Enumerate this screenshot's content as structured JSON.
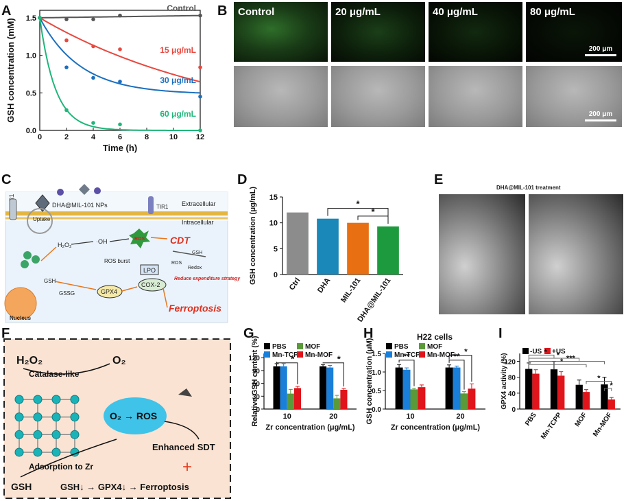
{
  "panels": {
    "A": "A",
    "B": "B",
    "C": "C",
    "D": "D",
    "E": "E",
    "F": "F",
    "G": "G",
    "H": "H",
    "I": "I"
  },
  "micro_B": {
    "top_labels": [
      "Control",
      "20 μg/mL",
      "40 μg/mL",
      "80 μg/mL"
    ],
    "scale_top": "200 μm",
    "scale_bottom": "200 μm"
  },
  "scheme_C": {
    "tir1_left": "TIR1",
    "tir1_right": "TIR1",
    "nps": "DHA@MIL-101 NPs",
    "uptake": "Uptake",
    "extracellular": "Extracellular",
    "intracellular": "Intracellular",
    "h2o2": "H₂O₂",
    "oh": "·OH",
    "ros": "ROS",
    "ros_burst": "ROS burst",
    "cdt": "CDT",
    "gsh_small": "GSH",
    "ros_small": "ROS",
    "redox": "Redox",
    "reduce": "Reduce expenditure strategy",
    "lpo": "LPO",
    "cox2": "COX-2",
    "gsh": "GSH",
    "gssg": "GSSG",
    "gpx4": "GPX4",
    "nucleus": "Nucleus",
    "ferroptosis": "Ferroptosis"
  },
  "panel_E": {
    "title": "DHA@MIL-101 treatment"
  },
  "scheme_F": {
    "h2o2": "H₂O₂",
    "catalase": "Catalase-like",
    "o2": "O₂",
    "o2ros": "O₂ → ROS",
    "enhanced": "Enhanced SDT",
    "adsorption": "Adsorption to Zr",
    "gsh": "GSH",
    "chain": "GSH↓ → GPX4↓ → Ferroptosis",
    "plus": "+"
  },
  "chart_data": [
    {
      "panel": "A",
      "type": "scatter",
      "xlabel": "Time (h)",
      "ylabel": "GSH concentration (mM)",
      "xlim": [
        0,
        12
      ],
      "ylim": [
        0,
        1.6
      ],
      "xticks": [
        0,
        2,
        4,
        6,
        8,
        10,
        12
      ],
      "yticks": [
        0.0,
        0.5,
        1.0,
        1.5
      ],
      "series": [
        {
          "name": "Control",
          "color": "#555555",
          "x": [
            0,
            2,
            4,
            6,
            12
          ],
          "y": [
            1.5,
            1.48,
            1.48,
            1.53,
            1.53
          ],
          "fit": "linear",
          "fit_end": 1.53
        },
        {
          "name": "15 μg/mL",
          "color": "#e8483f",
          "x": [
            0,
            2,
            4,
            6,
            12
          ],
          "y": [
            1.5,
            1.2,
            1.12,
            1.08,
            0.84
          ],
          "fit": "exp",
          "k": 0.07
        },
        {
          "name": "30 μg/mL",
          "color": "#1a6fbf",
          "x": [
            0,
            2,
            4,
            6,
            12
          ],
          "y": [
            1.5,
            0.84,
            0.7,
            0.65,
            0.45
          ],
          "fit": "exp",
          "k": 0.33,
          "plateau": 0.48
        },
        {
          "name": "60 μg/mL",
          "color": "#1fb67a",
          "x": [
            0,
            2,
            4,
            6,
            12
          ],
          "y": [
            1.5,
            0.27,
            0.1,
            0.08,
            0.0
          ],
          "fit": "exp",
          "k": 0.85,
          "plateau": 0.0
        }
      ]
    },
    {
      "panel": "D",
      "type": "bar",
      "ylabel": "GSH concentration (μg/mL)",
      "ylim": [
        0,
        15
      ],
      "yticks": [
        0,
        5,
        10,
        15
      ],
      "categories": [
        "Ctrl",
        "DHA",
        "MIL-101",
        "DHA@MIL-101"
      ],
      "values": [
        12.0,
        10.8,
        10.0,
        9.3
      ],
      "colors": [
        "#8c8c8c",
        "#1a88b8",
        "#e86f12",
        "#1e9a3e"
      ],
      "significance": [
        "*",
        "*"
      ]
    },
    {
      "panel": "G",
      "type": "bar",
      "ylabel": "Relative GSH content (%)",
      "xlabel": "Zr concentration (μg/mL)",
      "ylim": [
        0,
        130
      ],
      "yticks": [
        0,
        30,
        60,
        90,
        120
      ],
      "categories": [
        "10",
        "20"
      ],
      "series": [
        {
          "name": "PBS",
          "color": "#000000",
          "values": [
            100,
            100
          ],
          "err": [
            6,
            4
          ]
        },
        {
          "name": "MOF",
          "color": "#5a9a38",
          "values": [
            36,
            25
          ],
          "err": [
            10,
            7
          ]
        },
        {
          "name": "Mn-TCPP",
          "color": "#1a7fd8",
          "values": [
            100,
            97
          ],
          "err": [
            6,
            5
          ]
        },
        {
          "name": "Mn-MOF",
          "color": "#e0141b",
          "values": [
            49,
            45
          ],
          "err": [
            4,
            3
          ]
        }
      ],
      "significance": [
        "*",
        "*"
      ]
    },
    {
      "panel": "H",
      "type": "bar",
      "title": "H22 cells",
      "ylabel": "GSH concentration (μM)",
      "xlabel": "Zr concentration (μg/mL)",
      "ylim": [
        0,
        1.5
      ],
      "yticks": [
        0.0,
        0.5,
        1.0,
        1.5
      ],
      "categories": [
        "10",
        "20"
      ],
      "series": [
        {
          "name": "PBS",
          "color": "#000000",
          "values": [
            1.12,
            1.12
          ],
          "err": [
            0.08,
            0.07
          ]
        },
        {
          "name": "MOF",
          "color": "#5a9a38",
          "values": [
            0.53,
            0.42
          ],
          "err": [
            0.03,
            0.05
          ]
        },
        {
          "name": "Mn-TCPP",
          "color": "#1a7fd8",
          "values": [
            1.06,
            1.12
          ],
          "err": [
            0.05,
            0.04
          ]
        },
        {
          "name": "Mn-MOF",
          "color": "#e0141b",
          "values": [
            0.59,
            0.55
          ],
          "err": [
            0.06,
            0.13
          ]
        }
      ],
      "significance": [
        "**",
        "**",
        "*"
      ]
    },
    {
      "panel": "I",
      "type": "bar",
      "ylabel": "GPX4 activity (%)",
      "ylim": [
        0,
        140
      ],
      "yticks": [
        0,
        40,
        80,
        120
      ],
      "categories": [
        "PBS",
        "Mn-TCPP",
        "MOF",
        "Mn-MOF"
      ],
      "series": [
        {
          "name": "-US",
          "color": "#000000",
          "values": [
            101,
            100,
            61,
            62
          ],
          "err": [
            15,
            20,
            12,
            18
          ]
        },
        {
          "name": "+US",
          "color": "#e0141b",
          "values": [
            89,
            84,
            43,
            24
          ],
          "err": [
            10,
            10,
            6,
            5
          ]
        }
      ],
      "significance": [
        "*",
        "*",
        "**",
        "***",
        "*",
        "*"
      ]
    }
  ]
}
